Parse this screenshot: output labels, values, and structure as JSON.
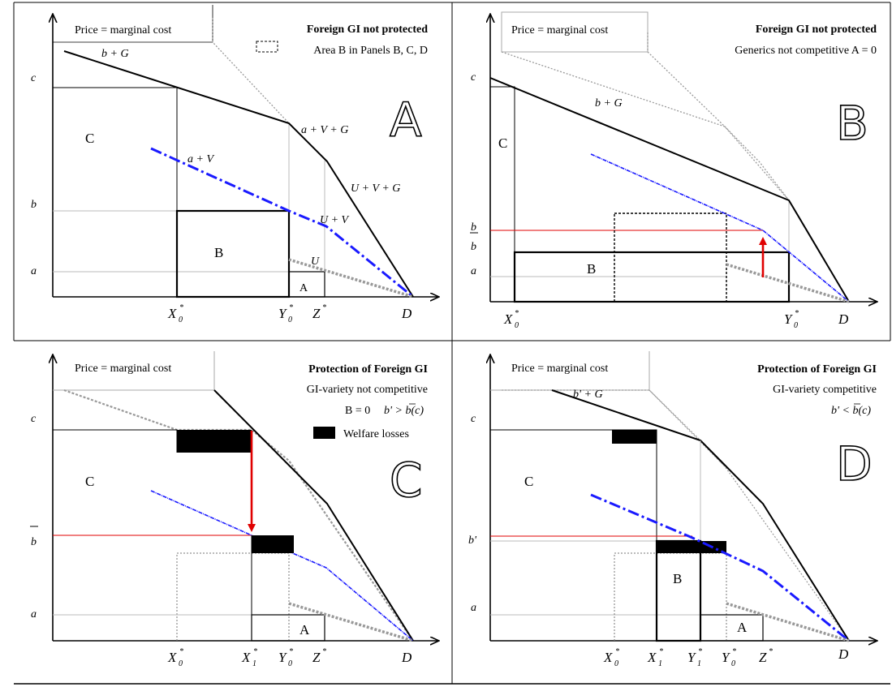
{
  "panels": {
    "A": {
      "letter": "A",
      "top_left_label": "Price = marginal cost",
      "title": "Foreign GI not protected",
      "legend_text": "Area B in Panels B, C, D",
      "y_labels": [
        "c",
        "b",
        "a"
      ],
      "x_labels": [
        "X",
        "Y",
        "Z",
        "D"
      ],
      "area_labels": [
        "C",
        "B",
        "A"
      ],
      "curve_labels": [
        "b + G",
        "a + V + G",
        "a + V",
        "U + V + G",
        "U + V",
        "U"
      ]
    },
    "B": {
      "letter": "B",
      "top_left_label": "Price = marginal cost",
      "title": "Foreign GI not protected",
      "subtitle": "Generics not competitive A = 0",
      "y_labels": [
        "c",
        "b",
        "b",
        "a"
      ],
      "x_labels": [
        "X",
        "Y",
        "D"
      ],
      "area_labels": [
        "C",
        "B"
      ],
      "curve_labels": [
        "b + G"
      ]
    },
    "C": {
      "letter": "C",
      "top_left_label": "Price = marginal cost",
      "title": "Protection of Foreign GI",
      "subtitle": "GI-variety not competitive",
      "condition_left": "B = 0",
      "condition_right": "b' > b(c)",
      "legend_text": "Welfare losses",
      "y_labels": [
        "c",
        "b",
        "a"
      ],
      "x_labels": [
        "X",
        "X",
        "Y",
        "Z",
        "D"
      ],
      "area_labels": [
        "C",
        "A"
      ]
    },
    "D": {
      "letter": "D",
      "top_left_label": "Price = marginal cost",
      "title": "Protection of Foreign GI",
      "subtitle": "GI-variety competitive",
      "condition": "b' < b(c)",
      "y_labels": [
        "c",
        "b'",
        "a"
      ],
      "x_labels": [
        "X",
        "X",
        "Y",
        "Y",
        "Z",
        "D"
      ],
      "area_labels": [
        "C",
        "B",
        "A"
      ],
      "curve_labels": [
        "b' + G"
      ]
    }
  }
}
